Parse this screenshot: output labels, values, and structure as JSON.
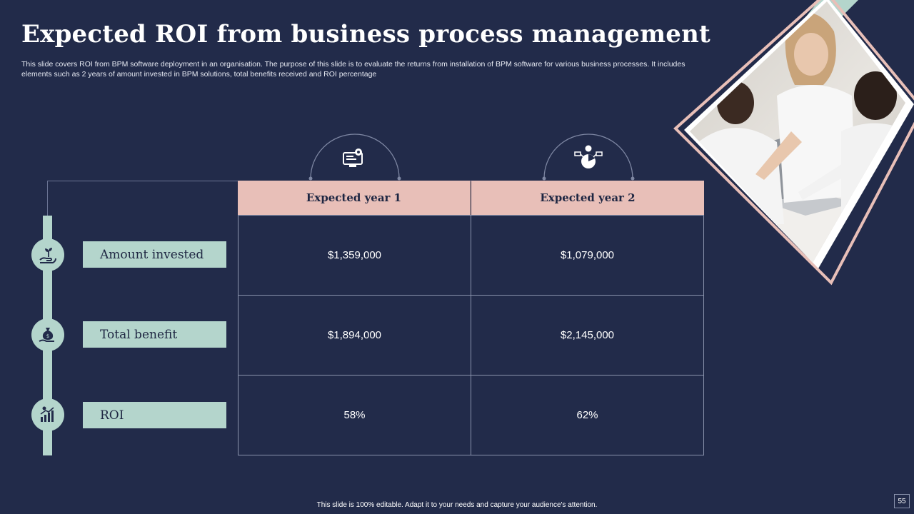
{
  "slide": {
    "title": "Expected ROI from business process management",
    "subtitle": "This slide covers ROI from BPM software deployment in an organisation. The purpose of this slide is to evaluate the returns from installation of BPM software for various business processes. It includes elements such as 2 years of amount invested in BPM solutions, total benefits received and ROI percentage",
    "footer": "This slide is 100% editable. Adapt it to your needs and capture your audience's attention.",
    "page_number": "55"
  },
  "table": {
    "columns": [
      "Expected year 1",
      "Expected year 2"
    ],
    "rows": [
      {
        "label": "Amount invested",
        "icon": "hand-plant-icon",
        "values": [
          "$1,359,000",
          "$1,079,000"
        ]
      },
      {
        "label": "Total benefit",
        "icon": "money-bag-hand-icon",
        "values": [
          "$1,894,000",
          "$2,145,000"
        ]
      },
      {
        "label": "ROI",
        "icon": "growth-chart-icon",
        "values": [
          "58%",
          "62%"
        ]
      }
    ]
  },
  "column_icons": [
    "computer-settings-icon",
    "dollar-pie-chart-icon"
  ],
  "colors": {
    "background": "#222b4a",
    "header_fill": "#e8bfb8",
    "accent_mint": "#b4d5cc",
    "text_dark": "#1e2642"
  }
}
